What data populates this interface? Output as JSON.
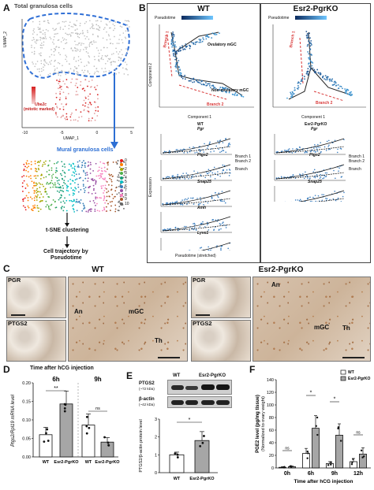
{
  "panel_a": {
    "label": "A",
    "total_title": "Total granulosa cells",
    "y_axis": "UMAP_2",
    "x_axis": "UMAP_1",
    "x_ticks": [
      "-10",
      "-5",
      "0",
      "5"
    ],
    "legend_gene": "Ube2c",
    "legend_sub": "(mitotic marked)",
    "mural_title": "Mural granulosa cells",
    "cluster_ids": [
      "0",
      "1",
      "2",
      "3",
      "4",
      "5",
      "6",
      "7",
      "8",
      "9",
      "10"
    ],
    "tsne_label": "t-SNE clustering",
    "trajectory_label": "Cell trajectory by",
    "trajectory_label2": "Pseudotime"
  },
  "panel_b": {
    "label": "B",
    "wt_title": "WT",
    "ko_title": "Esr2-PgrKO",
    "pseudotime_label": "Pseudotime",
    "component1": "Component 1",
    "component2": "Component 2",
    "ovulatory": "Ovulatory mGC",
    "non_ovulatory": "Non-ovulatory mGC",
    "branch1": "Branch 1",
    "branch2": "Branch 2",
    "genes": [
      "Pgr",
      "Ptgs2",
      "Snap25",
      "Amh",
      "Lyve1"
    ],
    "genes_ko": [
      "Pgr",
      "Ptgs2",
      "Snap25"
    ],
    "ko_subtitle": "Esr2-PgrKO",
    "wt_subtitle": "WT",
    "expression_label": "Expression",
    "stretched_label": "Pseudotime (stretched)",
    "branch_legend": "Branch",
    "branch_items": [
      "Branch 1",
      "Branch 2"
    ]
  },
  "panel_c": {
    "label": "C",
    "wt_title": "WT",
    "ko_title": "Esr2-PgrKO",
    "pgr": "PGR",
    "ptgs2": "PTGS2",
    "an": "An",
    "mgc": "mGC",
    "th": "Th"
  },
  "panel_d": {
    "label": "D",
    "title": "Time after hCG injection",
    "groups": [
      "6h",
      "9h"
    ],
    "ylabel": "Ptgs2/Rpl19 mRNA level",
    "sig_6h": "**",
    "sig_9h": "ns",
    "xtick_labels": [
      "WT",
      "Esr2-PgrKO",
      "WT",
      "Esr2-PgrKO"
    ],
    "yticks": [
      "0.00",
      "0.05",
      "0.10",
      "0.15",
      "0.20"
    ]
  },
  "panel_e": {
    "label": "E",
    "wt": "WT",
    "ko": "Esr2-PgrKO",
    "ptgs2": "PTGS2",
    "ptgs2_kda": "(~72 kDa)",
    "actin": "β-actin",
    "actin_kda": "(~42 kDa)",
    "ylabel": "PTGS2/β-actin protein level",
    "sig": "*",
    "xtick_labels": [
      "WT",
      "Esr2-PgrKO"
    ],
    "yticks": [
      "0",
      "1",
      "2",
      "3"
    ]
  },
  "panel_f": {
    "label": "F",
    "ylabel": "PGE2 level (pg/mg tissue)",
    "ylabel2": "(Normalized to ovary weight)",
    "xlabel": "Time after hCG injection",
    "legend": [
      "WT",
      "Esr2-PgrKO"
    ],
    "times": [
      "0h",
      "6h",
      "9h",
      "12h"
    ],
    "sig": [
      "ns",
      "*",
      "*",
      "ns"
    ],
    "yticks": [
      "0",
      "20",
      "40",
      "60",
      "80",
      "100",
      "120",
      "140"
    ]
  },
  "chart_data": [
    {
      "type": "bar",
      "panel": "D",
      "title": "Time after hCG injection",
      "ylabel": "Ptgs2/Rpl19 mRNA level",
      "categories": [
        "6h WT",
        "6h Esr2-PgrKO",
        "9h WT",
        "9h Esr2-PgrKO"
      ],
      "values": [
        0.06,
        0.143,
        0.086,
        0.04
      ],
      "errors": [
        0.02,
        0.035,
        0.03,
        0.012
      ],
      "ylim": [
        0,
        0.2
      ]
    },
    {
      "type": "bar",
      "panel": "E",
      "ylabel": "PTGS2/β-actin protein level",
      "categories": [
        "WT",
        "Esr2-PgrKO"
      ],
      "values": [
        1.0,
        1.8
      ],
      "errors": [
        0.15,
        0.5
      ],
      "ylim": [
        0,
        3
      ]
    },
    {
      "type": "bar",
      "panel": "F",
      "ylabel": "PGE2 level (pg/mg tissue)",
      "xlabel": "Time after hCG injection",
      "categories": [
        "0h",
        "6h",
        "9h",
        "12h"
      ],
      "series": [
        {
          "name": "WT",
          "values": [
            1,
            23,
            7,
            10
          ]
        },
        {
          "name": "Esr2-PgrKO",
          "values": [
            2,
            63,
            52,
            22
          ]
        }
      ],
      "errors": [
        [
          1,
          8,
          3,
          5
        ],
        [
          1,
          20,
          18,
          10
        ]
      ],
      "ylim": [
        0,
        140
      ]
    }
  ],
  "colors": {
    "blue_dashed": "#2f6fd6",
    "arrow_blue": "#2d6fd4",
    "bar_wt": "#ffffff",
    "bar_ko": "#a6a6a6"
  }
}
